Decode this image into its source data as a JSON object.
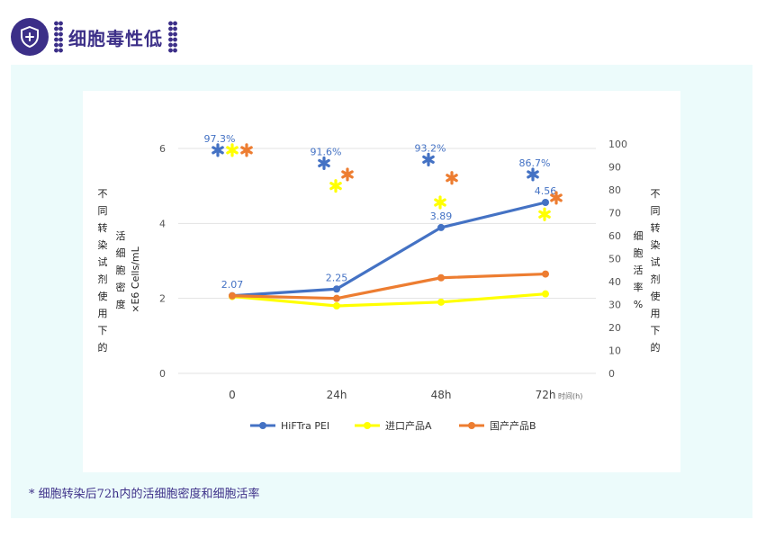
{
  "header": {
    "title": "细胞毒性低",
    "icon": "shield-plus-icon",
    "accent": "#3c2f88"
  },
  "footnote": "* 细胞转染后72h内的活细胞密度和细胞活率",
  "chart_data": {
    "type": "line",
    "categories": [
      "0",
      "24h",
      "48h",
      "72h"
    ],
    "x_unit_label": "时间(h)",
    "ylabel_left": "活细胞密度",
    "ylabel_left_unit": "×E6 Cells/mL",
    "ylabel_left_note": "不同转染试剂使用下的",
    "ylabel_right": "细胞活率%",
    "ylabel_right_note": "不同转染试剂使用下的",
    "ylim_left": [
      0,
      6
    ],
    "yticks_left": [
      "0",
      "2",
      "4",
      "6"
    ],
    "ylim_right": [
      0,
      100
    ],
    "yticks_right": [
      "0",
      "10",
      "20",
      "30",
      "40",
      "50",
      "60",
      "70",
      "80",
      "90",
      "100"
    ],
    "legend_position": "bottom",
    "series": [
      {
        "name": "HiFTra PEI",
        "color": "#4472c4",
        "values": [
          2.07,
          2.25,
          3.89,
          4.56
        ],
        "data_labels": [
          "2.07",
          "2.25",
          "3.89",
          "4.56"
        ]
      },
      {
        "name": "进口产品A",
        "color": "#ffff00",
        "values": [
          2.05,
          1.8,
          1.9,
          2.12
        ]
      },
      {
        "name": "国产产品B",
        "color": "#ed7d31",
        "values": [
          2.07,
          2.0,
          2.55,
          2.65
        ]
      }
    ],
    "viability": [
      {
        "series": "HiFTra PEI",
        "color": "#4472c4",
        "values": [
          97.3,
          91.6,
          93.2,
          86.7
        ],
        "data_labels": [
          "97.3%",
          "91.6%",
          "93.2%",
          "86.7%"
        ]
      },
      {
        "series": "进口产品A",
        "color": "#ffff00",
        "values": [
          97.3,
          81.7,
          74.5,
          69.3
        ]
      },
      {
        "series": "国产产品B",
        "color": "#ed7d31",
        "values": [
          97.3,
          86.7,
          85.2,
          76.5
        ]
      }
    ]
  }
}
